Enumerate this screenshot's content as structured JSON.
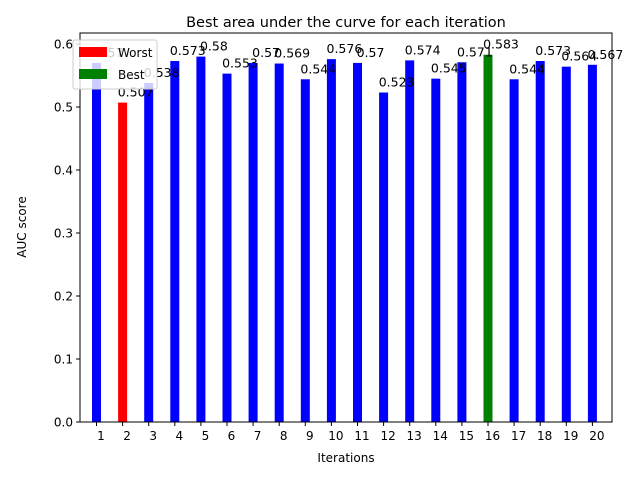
{
  "chart_data": {
    "type": "bar",
    "title": "Best area under the curve for each iteration",
    "xlabel": "Iterations",
    "ylabel": "AUC score",
    "ylim": [
      0,
      0.6
    ],
    "yticks": [
      "0.0",
      "0.1",
      "0.2",
      "0.3",
      "0.4",
      "0.5",
      "0.6"
    ],
    "categories": [
      "1",
      "2",
      "3",
      "4",
      "5",
      "6",
      "7",
      "8",
      "9",
      "10",
      "11",
      "12",
      "13",
      "14",
      "15",
      "16",
      "17",
      "18",
      "19",
      "20"
    ],
    "values": [
      0.57,
      0.507,
      0.538,
      0.573,
      0.58,
      0.553,
      0.57,
      0.569,
      0.544,
      0.576,
      0.57,
      0.523,
      0.574,
      0.545,
      0.571,
      0.583,
      0.544,
      0.573,
      0.564,
      0.567
    ],
    "value_labels": [
      "0.57",
      "0.507",
      "0.538",
      "0.573",
      "0.58",
      "0.553",
      "0.57",
      "0.569",
      "0.544",
      "0.576",
      "0.57",
      "0.523",
      "0.574",
      "0.545",
      "0.571",
      "0.583",
      "0.544",
      "0.573",
      "0.564",
      "0.567"
    ],
    "colors": {
      "default": "#0000ff",
      "worst": "#ff0000",
      "best": "#008000"
    },
    "worst_index": 1,
    "best_index": 15,
    "legend": {
      "placement": "top-left",
      "entries": [
        {
          "label": "Worst",
          "color": "#ff0000"
        },
        {
          "label": "Best",
          "color": "#008000"
        }
      ]
    },
    "grid": false
  }
}
